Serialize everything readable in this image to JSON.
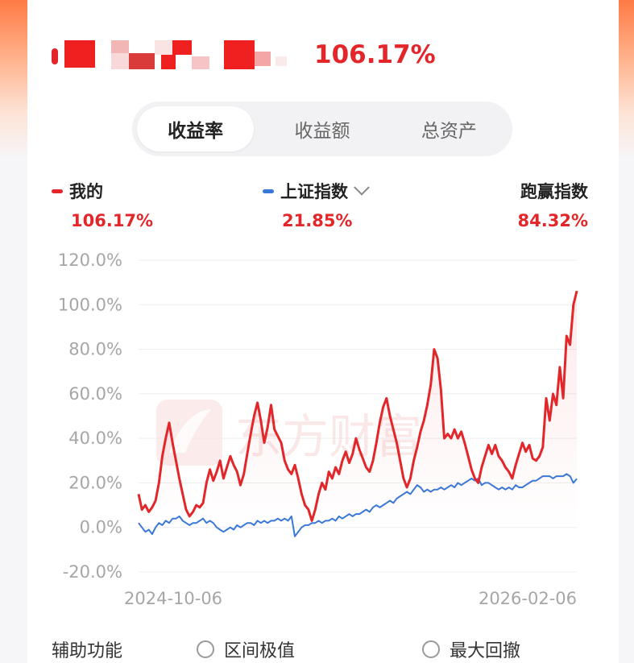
{
  "header": {
    "return_value": "106.17%"
  },
  "tabs": [
    {
      "label": "收益率",
      "active": true
    },
    {
      "label": "收益额",
      "active": false
    },
    {
      "label": "总资产",
      "active": false
    }
  ],
  "legend": {
    "mine": {
      "label": "我的",
      "value": "106.17%",
      "color": "#e3262a"
    },
    "index": {
      "label": "上证指数",
      "value": "21.85%",
      "color": "#3a78d8"
    },
    "beat": {
      "label": "跑赢指数",
      "value": "84.32%"
    }
  },
  "watermark": "东方财富",
  "footer": {
    "title": "辅助功能",
    "option1": "区间极值",
    "option2": "最大回撤"
  },
  "chart_data": {
    "type": "line",
    "y_tick_labels": [
      "120.0%",
      "100.0%",
      "80.0%",
      "60.0%",
      "40.0%",
      "20.0%",
      "0.0%",
      "-20.0%"
    ],
    "x_tick_labels": [
      "2024-10-06",
      "2026-02-06"
    ],
    "ylim": [
      -20,
      120
    ],
    "grid": true,
    "series": [
      {
        "name": "我的",
        "color": "#e3262a",
        "points": [
          [
            0,
            15
          ],
          [
            1,
            8
          ],
          [
            2,
            10
          ],
          [
            3,
            7
          ],
          [
            4,
            9
          ],
          [
            5,
            12
          ],
          [
            6,
            20
          ],
          [
            7,
            32
          ],
          [
            8,
            40
          ],
          [
            9,
            47
          ],
          [
            10,
            38
          ],
          [
            11,
            30
          ],
          [
            12,
            22
          ],
          [
            13,
            15
          ],
          [
            14,
            8
          ],
          [
            15,
            5
          ],
          [
            16,
            7
          ],
          [
            17,
            10
          ],
          [
            18,
            9
          ],
          [
            19,
            11
          ],
          [
            20,
            20
          ],
          [
            21,
            26
          ],
          [
            22,
            21
          ],
          [
            23,
            25
          ],
          [
            24,
            30
          ],
          [
            25,
            22
          ],
          [
            26,
            27
          ],
          [
            27,
            32
          ],
          [
            28,
            28
          ],
          [
            29,
            25
          ],
          [
            30,
            19
          ],
          [
            31,
            24
          ],
          [
            32,
            33
          ],
          [
            33,
            42
          ],
          [
            34,
            50
          ],
          [
            35,
            56
          ],
          [
            36,
            48
          ],
          [
            37,
            38
          ],
          [
            38,
            45
          ],
          [
            39,
            55
          ],
          [
            40,
            44
          ],
          [
            41,
            41
          ],
          [
            42,
            38
          ],
          [
            43,
            30
          ],
          [
            44,
            26
          ],
          [
            45,
            24
          ],
          [
            46,
            28
          ],
          [
            47,
            22
          ],
          [
            48,
            15
          ],
          [
            49,
            10
          ],
          [
            50,
            8
          ],
          [
            51,
            3
          ],
          [
            52,
            8
          ],
          [
            53,
            15
          ],
          [
            54,
            20
          ],
          [
            55,
            17
          ],
          [
            56,
            25
          ],
          [
            57,
            22
          ],
          [
            58,
            27
          ],
          [
            59,
            24
          ],
          [
            60,
            30
          ],
          [
            61,
            34
          ],
          [
            62,
            29
          ],
          [
            63,
            33
          ],
          [
            64,
            40
          ],
          [
            65,
            35
          ],
          [
            66,
            31
          ],
          [
            67,
            27
          ],
          [
            68,
            25
          ],
          [
            69,
            30
          ],
          [
            70,
            38
          ],
          [
            71,
            47
          ],
          [
            72,
            54
          ],
          [
            73,
            58
          ],
          [
            74,
            50
          ],
          [
            75,
            44
          ],
          [
            76,
            38
          ],
          [
            77,
            30
          ],
          [
            78,
            22
          ],
          [
            79,
            18
          ],
          [
            80,
            22
          ],
          [
            81,
            30
          ],
          [
            82,
            36
          ],
          [
            83,
            43
          ],
          [
            84,
            48
          ],
          [
            85,
            55
          ],
          [
            86,
            64
          ],
          [
            87,
            80
          ],
          [
            88,
            76
          ],
          [
            89,
            62
          ],
          [
            90,
            40
          ],
          [
            91,
            42
          ],
          [
            92,
            40
          ],
          [
            93,
            44
          ],
          [
            94,
            40
          ],
          [
            95,
            43
          ],
          [
            96,
            38
          ],
          [
            97,
            32
          ],
          [
            98,
            26
          ],
          [
            99,
            22
          ],
          [
            100,
            20
          ],
          [
            101,
            27
          ],
          [
            102,
            32
          ],
          [
            103,
            37
          ],
          [
            104,
            33
          ],
          [
            105,
            37
          ],
          [
            106,
            32
          ],
          [
            107,
            30
          ],
          [
            108,
            27
          ],
          [
            109,
            25
          ],
          [
            110,
            22
          ],
          [
            111,
            28
          ],
          [
            112,
            33
          ],
          [
            113,
            38
          ],
          [
            114,
            34
          ],
          [
            115,
            37
          ],
          [
            116,
            31
          ],
          [
            117,
            30
          ],
          [
            118,
            32
          ],
          [
            119,
            36
          ],
          [
            120,
            58
          ],
          [
            121,
            48
          ],
          [
            122,
            60
          ],
          [
            123,
            55
          ],
          [
            124,
            72
          ],
          [
            125,
            58
          ],
          [
            126,
            86
          ],
          [
            127,
            82
          ],
          [
            128,
            100
          ],
          [
            129,
            106.17
          ]
        ]
      },
      {
        "name": "上证指数",
        "color": "#3a78d8",
        "points": [
          [
            0,
            2
          ],
          [
            1,
            0
          ],
          [
            2,
            -2
          ],
          [
            3,
            -1
          ],
          [
            4,
            -3
          ],
          [
            5,
            0
          ],
          [
            6,
            2
          ],
          [
            7,
            1
          ],
          [
            8,
            3
          ],
          [
            9,
            2
          ],
          [
            10,
            4
          ],
          [
            11,
            4
          ],
          [
            12,
            5
          ],
          [
            13,
            3
          ],
          [
            14,
            2
          ],
          [
            15,
            1
          ],
          [
            16,
            2
          ],
          [
            17,
            2
          ],
          [
            18,
            3
          ],
          [
            19,
            4
          ],
          [
            20,
            2
          ],
          [
            21,
            3
          ],
          [
            22,
            2
          ],
          [
            23,
            0
          ],
          [
            24,
            -1
          ],
          [
            25,
            -2
          ],
          [
            26,
            -1
          ],
          [
            27,
            0
          ],
          [
            28,
            -1
          ],
          [
            29,
            1
          ],
          [
            30,
            0
          ],
          [
            31,
            1
          ],
          [
            32,
            2
          ],
          [
            33,
            2
          ],
          [
            34,
            1
          ],
          [
            35,
            3
          ],
          [
            36,
            2
          ],
          [
            37,
            3
          ],
          [
            38,
            2
          ],
          [
            39,
            3
          ],
          [
            40,
            3
          ],
          [
            41,
            4
          ],
          [
            42,
            3
          ],
          [
            43,
            4
          ],
          [
            44,
            3
          ],
          [
            45,
            5
          ],
          [
            46,
            -4
          ],
          [
            47,
            -2
          ],
          [
            48,
            0
          ],
          [
            49,
            1
          ],
          [
            50,
            1
          ],
          [
            51,
            2
          ],
          [
            52,
            2
          ],
          [
            53,
            3
          ],
          [
            54,
            2
          ],
          [
            55,
            3
          ],
          [
            56,
            3
          ],
          [
            57,
            4
          ],
          [
            58,
            3
          ],
          [
            59,
            5
          ],
          [
            60,
            4
          ],
          [
            61,
            5
          ],
          [
            62,
            6
          ],
          [
            63,
            5
          ],
          [
            64,
            6
          ],
          [
            65,
            6
          ],
          [
            66,
            7
          ],
          [
            67,
            8
          ],
          [
            68,
            7
          ],
          [
            69,
            9
          ],
          [
            70,
            10
          ],
          [
            71,
            9
          ],
          [
            72,
            10
          ],
          [
            73,
            11
          ],
          [
            74,
            12
          ],
          [
            75,
            11
          ],
          [
            76,
            13
          ],
          [
            77,
            14
          ],
          [
            78,
            15
          ],
          [
            79,
            16
          ],
          [
            80,
            15
          ],
          [
            81,
            17
          ],
          [
            82,
            19
          ],
          [
            83,
            18
          ],
          [
            84,
            16
          ],
          [
            85,
            17
          ],
          [
            86,
            16
          ],
          [
            87,
            17
          ],
          [
            88,
            17
          ],
          [
            89,
            18
          ],
          [
            90,
            17
          ],
          [
            91,
            18
          ],
          [
            92,
            19
          ],
          [
            93,
            18
          ],
          [
            94,
            20
          ],
          [
            95,
            19
          ],
          [
            96,
            20
          ],
          [
            97,
            21
          ],
          [
            98,
            22
          ],
          [
            99,
            21
          ],
          [
            100,
            22
          ],
          [
            101,
            19
          ],
          [
            102,
            20
          ],
          [
            103,
            20
          ],
          [
            104,
            19
          ],
          [
            105,
            18
          ],
          [
            106,
            17
          ],
          [
            107,
            18
          ],
          [
            108,
            17
          ],
          [
            109,
            18
          ],
          [
            110,
            17
          ],
          [
            111,
            19
          ],
          [
            112,
            18
          ],
          [
            113,
            18
          ],
          [
            114,
            19
          ],
          [
            115,
            20
          ],
          [
            116,
            21
          ],
          [
            117,
            21
          ],
          [
            118,
            22
          ],
          [
            119,
            23
          ],
          [
            120,
            23
          ],
          [
            121,
            23
          ],
          [
            122,
            22
          ],
          [
            123,
            23
          ],
          [
            124,
            23
          ],
          [
            125,
            23
          ],
          [
            126,
            24
          ],
          [
            127,
            23
          ],
          [
            128,
            20
          ],
          [
            129,
            21.85
          ]
        ]
      }
    ]
  }
}
